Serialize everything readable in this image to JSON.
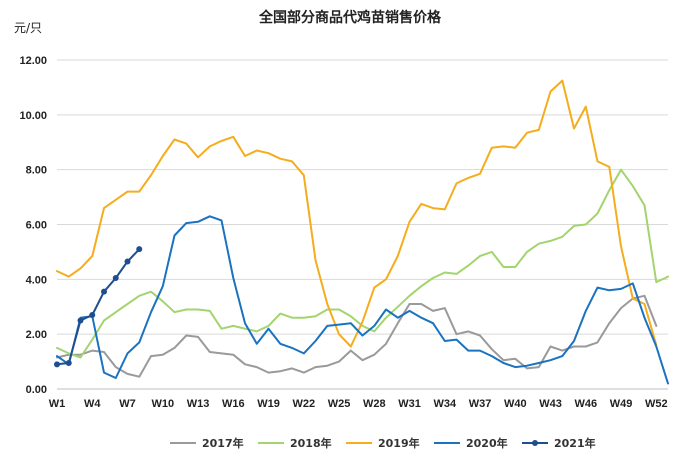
{
  "chart_data": {
    "type": "line",
    "title": "全国部分商品代鸡苗销售价格",
    "ylabel": "元/只",
    "xlabel": "",
    "ylim": [
      0,
      12
    ],
    "yticks": [
      "0.00",
      "2.00",
      "4.00",
      "6.00",
      "8.00",
      "10.00",
      "12.00"
    ],
    "x_tick_labels": [
      "W1",
      "W4",
      "W7",
      "W10",
      "W13",
      "W16",
      "W19",
      "W22",
      "W25",
      "W28",
      "W31",
      "W34",
      "W37",
      "W40",
      "W43",
      "W46",
      "W49",
      "W52"
    ],
    "grid": "horizontal",
    "legend_position": "bottom",
    "series": [
      {
        "name": "2017年",
        "color": "#9a9a9a",
        "marker": false,
        "values": [
          1.15,
          1.25,
          1.25,
          1.4,
          1.35,
          0.8,
          0.55,
          0.45,
          1.2,
          1.25,
          1.5,
          1.95,
          1.9,
          1.35,
          1.3,
          1.25,
          0.9,
          0.8,
          0.6,
          0.65,
          0.75,
          0.6,
          0.8,
          0.85,
          1.0,
          1.4,
          1.05,
          1.25,
          1.65,
          2.4,
          3.1,
          3.1,
          2.85,
          2.95,
          2.0,
          2.1,
          1.95,
          1.45,
          1.05,
          1.1,
          0.75,
          0.8,
          1.55,
          1.4,
          1.55,
          1.55,
          1.7,
          2.4,
          2.95,
          3.3,
          3.4,
          2.3
        ]
      },
      {
        "name": "2018年",
        "color": "#a3d46e",
        "marker": false,
        "values": [
          1.5,
          1.3,
          1.15,
          1.8,
          2.5,
          2.8,
          3.1,
          3.4,
          3.55,
          3.2,
          2.8,
          2.9,
          2.9,
          2.85,
          2.2,
          2.3,
          2.2,
          2.1,
          2.3,
          2.75,
          2.6,
          2.6,
          2.65,
          2.9,
          2.9,
          2.65,
          2.3,
          2.1,
          2.6,
          3.0,
          3.4,
          3.75,
          4.05,
          4.25,
          4.2,
          4.5,
          4.85,
          5.0,
          4.45,
          4.45,
          5.0,
          5.3,
          5.4,
          5.55,
          5.95,
          6.0,
          6.4,
          7.25,
          8.0,
          7.4,
          6.7,
          3.9,
          4.1
        ]
      },
      {
        "name": "2019年",
        "color": "#f5ac1d",
        "marker": false,
        "values": [
          4.3,
          4.1,
          4.4,
          4.85,
          6.6,
          6.9,
          7.2,
          7.2,
          7.8,
          8.5,
          9.1,
          8.95,
          8.45,
          8.85,
          9.05,
          9.2,
          8.5,
          8.7,
          8.6,
          8.4,
          8.3,
          7.8,
          4.7,
          3.1,
          2.0,
          1.55,
          2.45,
          3.7,
          4.0,
          4.85,
          6.1,
          6.75,
          6.6,
          6.55,
          7.5,
          7.7,
          7.85,
          8.8,
          8.85,
          8.8,
          9.35,
          9.45,
          10.85,
          11.25,
          9.5,
          10.3,
          8.3,
          8.1,
          5.2,
          3.3,
          3.1,
          1.6
        ]
      },
      {
        "name": "2020年",
        "color": "#1a72c0",
        "marker": false,
        "values": [
          1.2,
          0.9,
          2.6,
          2.65,
          0.6,
          0.4,
          1.3,
          1.7,
          2.8,
          3.75,
          5.6,
          6.05,
          6.1,
          6.3,
          6.15,
          4.05,
          2.4,
          1.65,
          2.2,
          1.65,
          1.5,
          1.3,
          1.75,
          2.3,
          2.35,
          2.4,
          1.95,
          2.3,
          2.9,
          2.6,
          2.85,
          2.6,
          2.4,
          1.75,
          1.8,
          1.4,
          1.4,
          1.2,
          0.95,
          0.8,
          0.85,
          0.95,
          1.05,
          1.2,
          1.75,
          2.85,
          3.7,
          3.6,
          3.65,
          3.85,
          2.6,
          1.55,
          0.2
        ]
      },
      {
        "name": "2021年",
        "color": "#1f4e90",
        "marker": true,
        "values": [
          0.9,
          0.95,
          2.5,
          2.7,
          3.55,
          4.05,
          4.65,
          5.1
        ]
      }
    ]
  }
}
